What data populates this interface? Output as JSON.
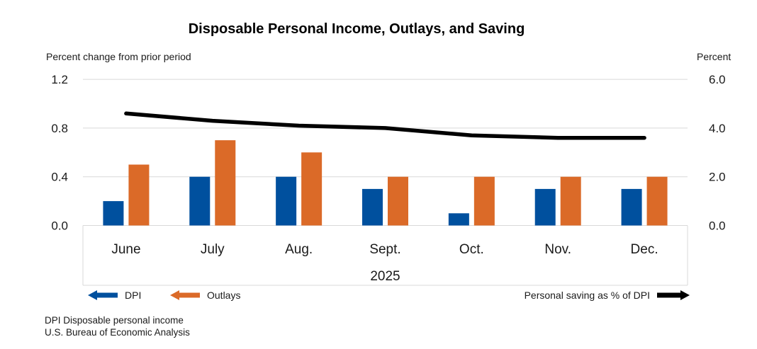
{
  "title": "Disposable Personal Income, Outlays, and Saving",
  "chart_data": {
    "type": "combo",
    "title": "Disposable Personal Income, Outlays, and Saving",
    "categories": [
      "June",
      "July",
      "Aug.",
      "Sept.",
      "Oct.",
      "Nov.",
      "Dec."
    ],
    "year_label": "2025",
    "left_axis": {
      "label": "Percent change from prior period",
      "ticks": [
        1.2,
        0.8,
        0.4,
        0.0
      ],
      "range": [
        0,
        1.2
      ],
      "grid": true
    },
    "right_axis": {
      "label": "Percent",
      "ticks": [
        6.0,
        4.0,
        2.0,
        0.0
      ],
      "range": [
        0,
        6.0
      ]
    },
    "series": [
      {
        "name": "DPI",
        "type": "bar",
        "axis": "left",
        "color": "#00509E",
        "values": [
          0.2,
          0.4,
          0.4,
          0.3,
          0.1,
          0.3,
          0.3
        ]
      },
      {
        "name": "Outlays",
        "type": "bar",
        "axis": "left",
        "color": "#DB6A28",
        "values": [
          0.5,
          0.7,
          0.6,
          0.4,
          0.4,
          0.4,
          0.4
        ]
      },
      {
        "name": "Personal saving as % of DPI",
        "type": "line",
        "axis": "right",
        "color": "#000000",
        "values": [
          4.6,
          4.3,
          4.1,
          4.0,
          3.7,
          3.6,
          3.6
        ]
      }
    ],
    "legend_position": "bottom",
    "grid_color": "#D9D9D9"
  },
  "footnotes": {
    "line1": "DPI Disposable personal income",
    "line2": "U.S. Bureau of Economic Analysis"
  }
}
